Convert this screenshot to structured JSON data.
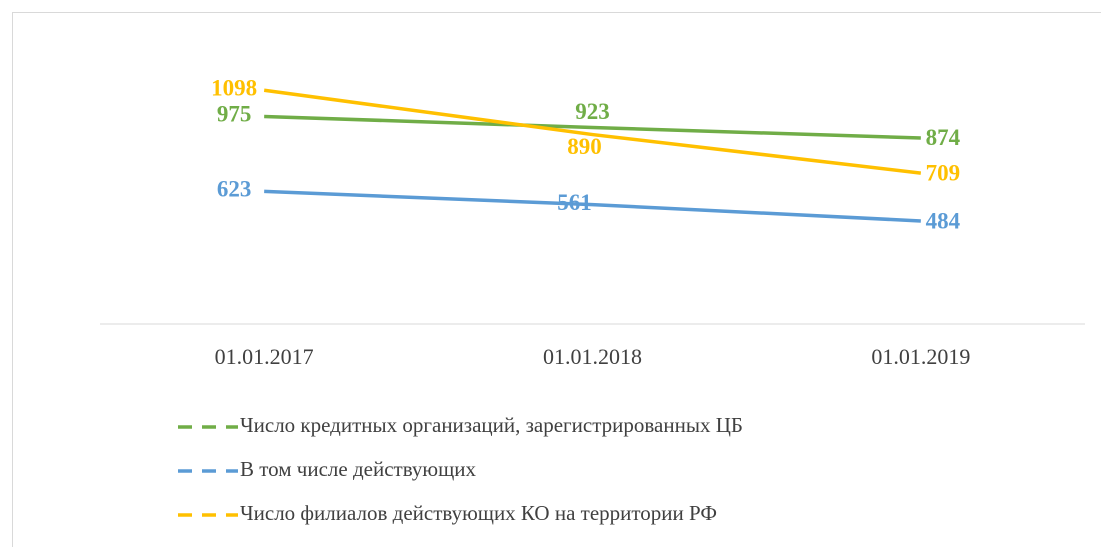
{
  "chart_data": {
    "type": "line",
    "categories": [
      "01.01.2017",
      "01.01.2018",
      "01.01.2019"
    ],
    "series": [
      {
        "name": "Число кредитных организаций, зарегистрированных ЦБ",
        "color": "#70ad47",
        "values": [
          975,
          923,
          874
        ]
      },
      {
        "name": "В том числе действующих",
        "color": "#5b9bd5",
        "values": [
          623,
          561,
          484
        ]
      },
      {
        "name": "Число филиалов действующих КО на территории РФ",
        "color": "#ffc000",
        "values": [
          1098,
          890,
          709
        ]
      }
    ],
    "ylim": [
      0,
      1400
    ],
    "legend": "bottom"
  }
}
